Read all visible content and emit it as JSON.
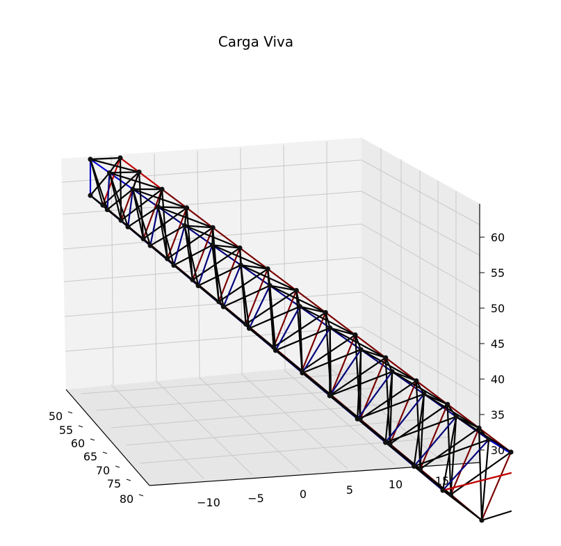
{
  "chart_data": {
    "type": "3d-wireframe",
    "title": "Carga Viva",
    "xlabel": "",
    "ylabel": "",
    "zlabel": "",
    "x_ticks": [
      "50",
      "55",
      "60",
      "65",
      "70",
      "75",
      "80"
    ],
    "y_ticks": [
      "−10",
      "−5",
      "0",
      "5",
      "10",
      "15"
    ],
    "z_ticks": [
      "30",
      "35",
      "40",
      "45",
      "50",
      "55",
      "60"
    ],
    "xlim": [
      48,
      82
    ],
    "ylim": [
      -14,
      18
    ],
    "zlim": [
      28,
      63
    ],
    "grid": true,
    "member_colors": {
      "bracing": "#000000",
      "chord_tension": "#c00000",
      "chord_compression": "#0000cc",
      "dark_red": "#7a0000",
      "dark_blue": "#00007a",
      "node": "#111111"
    },
    "structure": {
      "description_free": true,
      "panels": 14,
      "nodes_per_section": 4
    }
  }
}
